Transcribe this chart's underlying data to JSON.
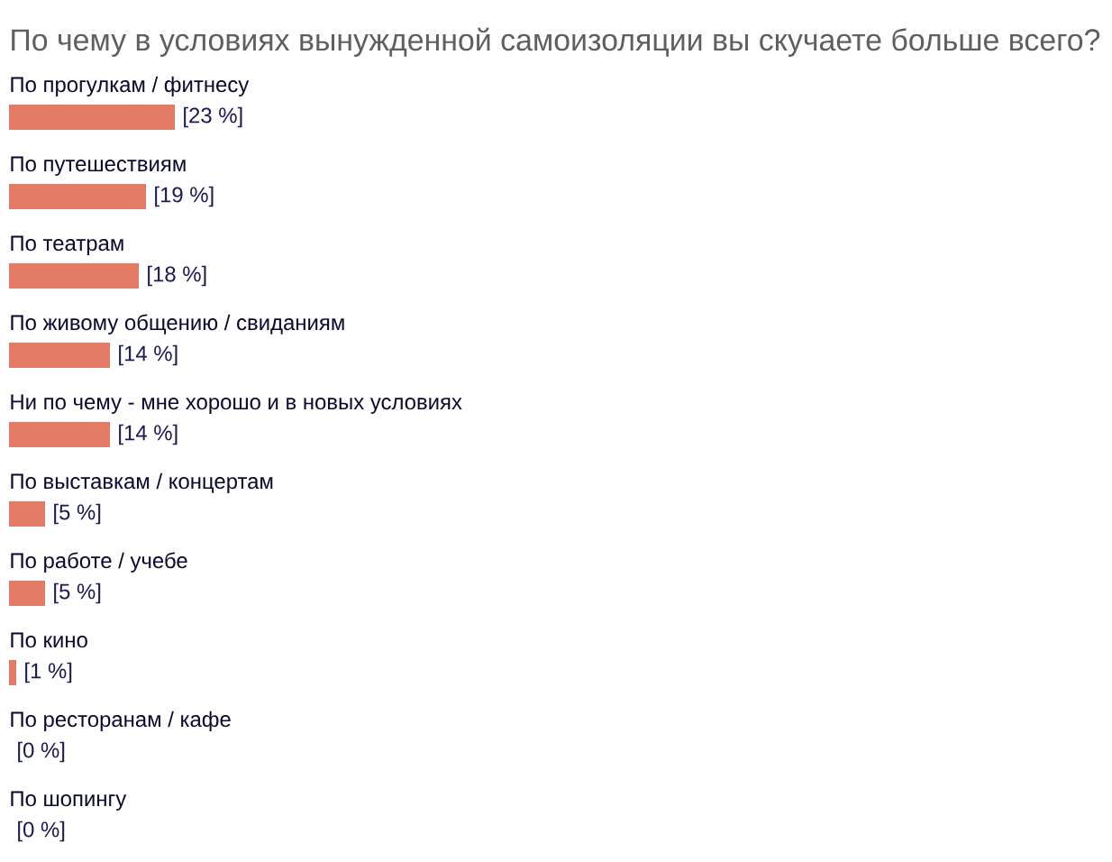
{
  "chart_data": {
    "type": "bar",
    "orientation": "horizontal",
    "title": "По чему в условиях вынужденной самоизоляции вы скучаете больше всего?",
    "categories": [
      "По прогулкам / фитнесу",
      "По путешествиям",
      "По театрам",
      "По живому общению / свиданиям",
      "Ни по чему - мне хорошо и в новых условиях",
      "По выставкам / концертам",
      "По работе / учебе",
      "По кино",
      "По ресторанам / кафе",
      "По шопингу"
    ],
    "values": [
      23,
      19,
      18,
      14,
      14,
      5,
      5,
      1,
      0,
      0
    ],
    "value_labels": [
      "[23 %]",
      "[19 %]",
      "[18 %]",
      "[14 %]",
      "[14 %]",
      "[5 %]",
      "[5 %]",
      "[1 %]",
      "[0 %]",
      "[0 %]"
    ],
    "color": "#e47b67"
  }
}
